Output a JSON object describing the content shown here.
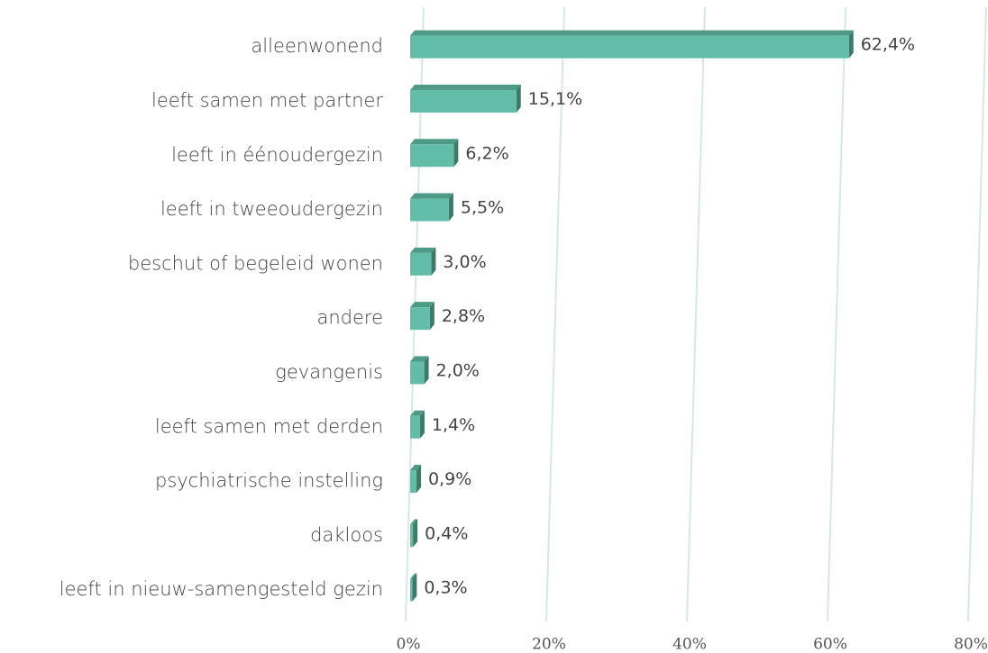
{
  "chart_data": {
    "type": "bar3d_horizontal",
    "categories": [
      "alleenwonend",
      "leeft samen met partner",
      "leeft in éénoudergezin",
      "leeft in tweeoudergezin",
      "beschut of begeleid wonen",
      "andere",
      "gevangenis",
      "leeft samen met derden",
      "psychiatrische instelling",
      "dakloos",
      "leeft in nieuw-samengesteld gezin"
    ],
    "values": [
      62.4,
      15.1,
      6.2,
      5.5,
      3.0,
      2.8,
      2.0,
      1.4,
      0.9,
      0.4,
      0.3
    ],
    "value_labels": [
      "62,4%",
      "15,1%",
      "6,2%",
      "5,5%",
      "3,0%",
      "2,8%",
      "2,0%",
      "1,4%",
      "0,9%",
      "0,4%",
      "0,3%"
    ],
    "color": "#62bda8",
    "xlim": [
      0,
      80
    ],
    "xticks": [
      {
        "value": 0,
        "label": "0%"
      },
      {
        "value": 20,
        "label": "20%"
      },
      {
        "value": 40,
        "label": "40%"
      },
      {
        "value": 60,
        "label": "60%"
      },
      {
        "value": 80,
        "label": "80%"
      }
    ],
    "grid": true
  }
}
